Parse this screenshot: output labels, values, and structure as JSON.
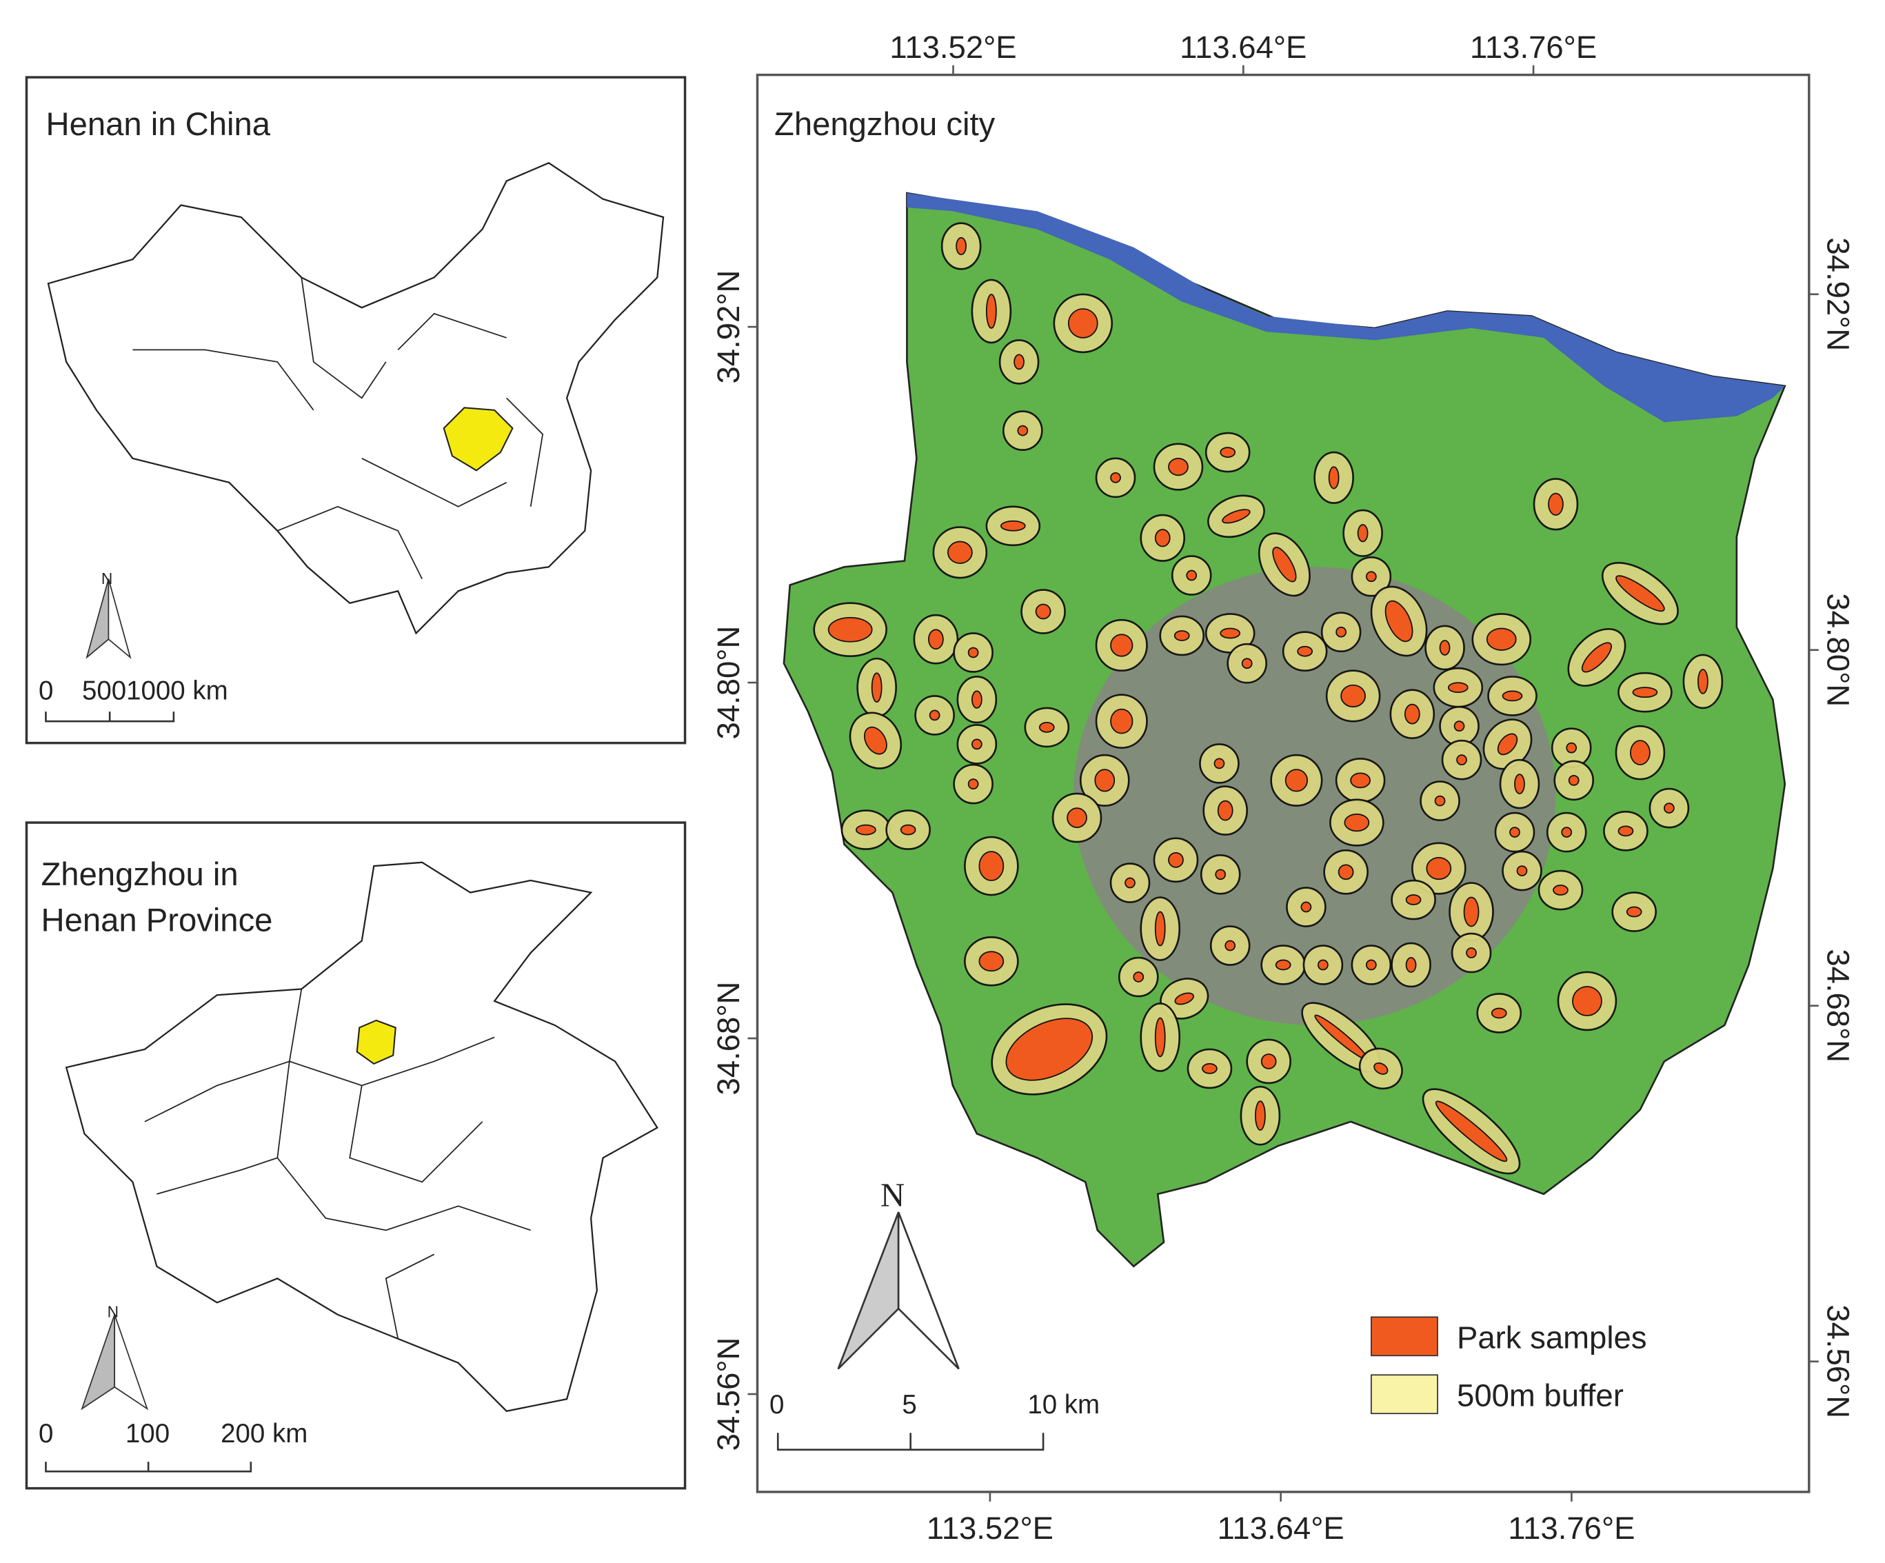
{
  "panels": [
    {
      "title": "Henan in China",
      "north": "N",
      "scale_bar": [
        "0",
        "5001000 km"
      ]
    },
    {
      "title": [
        "Zhengzhou in",
        "Henan Province"
      ],
      "north": "N",
      "scale_bar": [
        "0",
        "100",
        "200 km"
      ]
    },
    {
      "title": "Zhengzhou city",
      "north": "N",
      "scale_bar": [
        "0",
        "5",
        "10 km"
      ],
      "legend": [
        "Park samples",
        "500m buffer"
      ],
      "lon_top": {
        "lim": [
          113.439,
          113.874
        ],
        "ticks": [
          {
            "value": 113.52,
            "label": "113.52°E"
          },
          {
            "value": 113.64,
            "label": "113.64°E"
          },
          {
            "value": 113.76,
            "label": "113.76°E"
          }
        ]
      },
      "lon_bottom": {
        "lim": [
          113.424,
          113.858
        ],
        "ticks": [
          {
            "value": 113.52,
            "label": "113.52°E"
          },
          {
            "value": 113.64,
            "label": "113.64°E"
          },
          {
            "value": 113.76,
            "label": "113.76°E"
          }
        ]
      },
      "lat_left": {
        "lim": [
          34.527,
          35.005
        ],
        "ticks": [
          {
            "value": 34.92,
            "label": "34.92°N"
          },
          {
            "value": 34.8,
            "label": "34.80°N"
          },
          {
            "value": 34.68,
            "label": "34.68°N"
          },
          {
            "value": 34.56,
            "label": "34.56°N"
          }
        ]
      },
      "lat_right": {
        "lim": [
          34.516,
          34.994
        ],
        "ticks": [
          {
            "value": 34.92,
            "label": "34.92°N"
          },
          {
            "value": 34.8,
            "label": "34.80°N"
          },
          {
            "value": 34.68,
            "label": "34.68°N"
          },
          {
            "value": 34.56,
            "label": "34.56°N"
          }
        ]
      }
    }
  ]
}
